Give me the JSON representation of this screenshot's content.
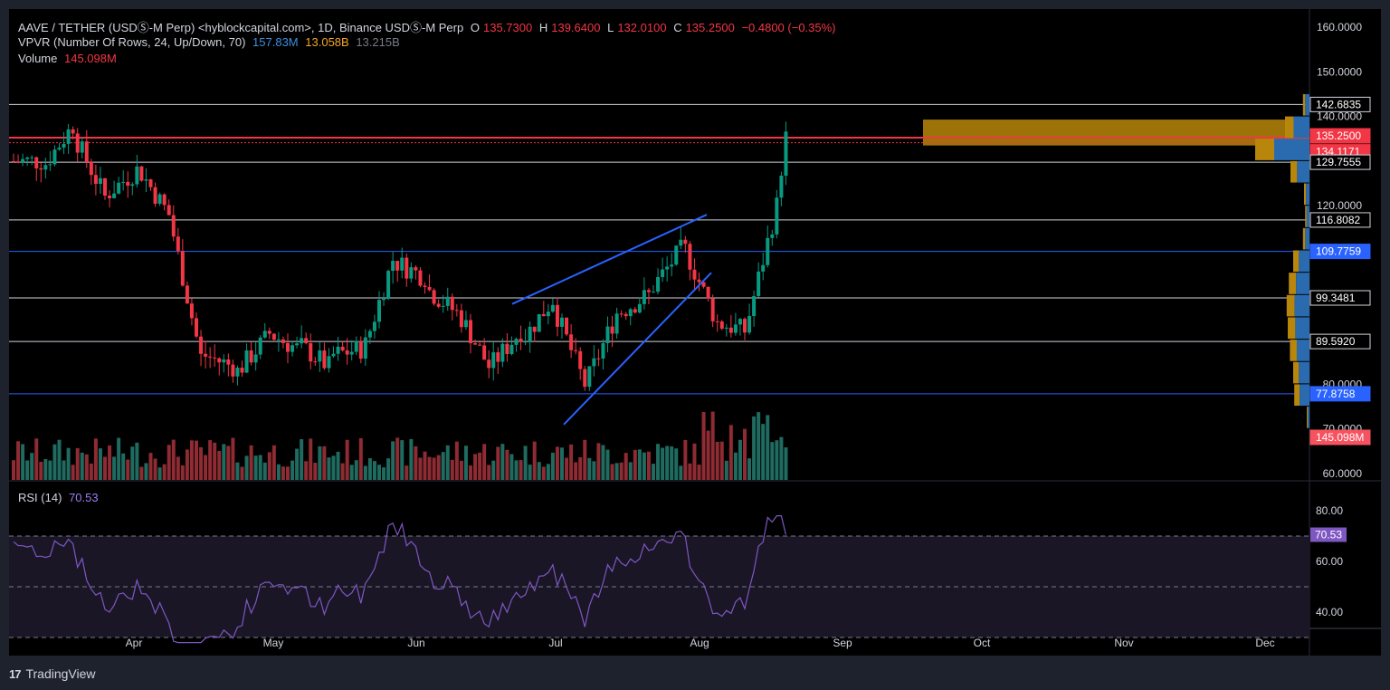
{
  "header": {
    "symbol": "AAVE / TETHER (USDⓈ-M Perp) <hyblockcapital.com>, 1D, Binance USDⓈ-M Perp",
    "o_label": "O",
    "o": "135.7300",
    "h_label": "H",
    "h": "139.6400",
    "l_label": "L",
    "l": "132.0100",
    "c_label": "C",
    "c": "135.2500",
    "change": "−0.4800 (−0.35%)",
    "vpvr_label": "VPVR (Number Of Rows, 24, Up/Down, 70)",
    "vpvr_up": "157.83M",
    "vpvr_down": "13.058B",
    "vpvr_total": "13.215B",
    "volume_label": "Volume",
    "volume": "145.098M"
  },
  "rsi_pane": {
    "label": "RSI (14)",
    "value": "70.53"
  },
  "price_axis": {
    "ticks": [
      "160.0000",
      "150.0000",
      "140.0000",
      "120.0000",
      "80.0000",
      "70.0000",
      "60.0000"
    ],
    "level_labels": [
      {
        "text": "142.6835",
        "style": "white"
      },
      {
        "text": "135.2500",
        "style": "red"
      },
      {
        "text": "134.1171",
        "style": "red"
      },
      {
        "text": "129.7555",
        "style": "white"
      },
      {
        "text": "116.8082",
        "style": "white"
      },
      {
        "text": "109.7759",
        "style": "blue"
      },
      {
        "text": "99.3481",
        "style": "white"
      },
      {
        "text": "89.5920",
        "style": "white"
      },
      {
        "text": "77.8758",
        "style": "blue"
      },
      {
        "text": "145.098M",
        "style": "redvol"
      }
    ]
  },
  "rsi_axis": {
    "ticks": [
      "80.00",
      "60.00",
      "40.00"
    ],
    "value_label": "70.53"
  },
  "time_axis": [
    "Apr",
    "May",
    "Jun",
    "Jul",
    "Aug",
    "Sep",
    "Oct",
    "Nov",
    "Dec"
  ],
  "footer": {
    "logo": "17",
    "brand": "TradingView"
  },
  "colors": {
    "up": "#089981",
    "down": "#f23645",
    "vol_up": "#1f6b60",
    "vol_down": "#8e2b33",
    "rsi": "#7e57c2",
    "level_white": "#d1d4dc",
    "level_blue": "#2962ff",
    "vpvr_up": "#2a6bb0",
    "vpvr_down": "#b8860b"
  },
  "chart_data": {
    "type": "candlestick",
    "title": "AAVE / TETHER (USDⓈ-M Perp), 1D",
    "ylim": [
      58,
      165
    ],
    "horizontal_levels": [
      142.6835,
      135.25,
      134.1171,
      129.7555,
      116.8082,
      109.7759,
      99.3481,
      89.592,
      77.8758
    ],
    "trendlines": [
      {
        "from": [
          "2024-06-22",
          98
        ],
        "to": [
          "2024-08-01",
          118
        ]
      },
      {
        "from": [
          "2024-07-03",
          71
        ],
        "to": [
          "2024-08-02",
          105
        ]
      }
    ],
    "close_series_weekly": {
      "x": [
        "Mar 07",
        "Mar 14",
        "Mar 21",
        "Mar 28",
        "Apr 04",
        "Apr 11",
        "Apr 18",
        "Apr 25",
        "May 02",
        "May 09",
        "May 16",
        "May 23",
        "May 30",
        "Jun 06",
        "Jun 13",
        "Jun 20",
        "Jun 27",
        "Jul 04",
        "Jul 11",
        "Jul 18",
        "Jul 25",
        "Aug 01",
        "Aug 08",
        "Aug 15",
        "Aug 22"
      ],
      "close": [
        130,
        138,
        122,
        128,
        118,
        86,
        84,
        90,
        88,
        84,
        88,
        108,
        104,
        96,
        84,
        92,
        99,
        80,
        96,
        100,
        110,
        96,
        92,
        120,
        135.25
      ]
    },
    "rsi": {
      "value": 70.53,
      "levels": [
        70,
        50,
        30
      ],
      "ylim": [
        25,
        82
      ]
    },
    "vpvr_profile_price_bins": [
      160,
      155,
      150,
      145,
      140,
      135,
      130,
      125,
      120,
      115,
      110,
      105,
      100,
      95,
      90,
      85,
      80,
      75,
      70,
      65
    ],
    "vpvr_profile_rel_width": [
      0,
      0,
      0,
      0.12,
      0.45,
      1.0,
      0.35,
      0.1,
      0.08,
      0.12,
      0.3,
      0.38,
      0.42,
      0.4,
      0.36,
      0.3,
      0.28,
      0.05,
      0,
      0
    ]
  }
}
